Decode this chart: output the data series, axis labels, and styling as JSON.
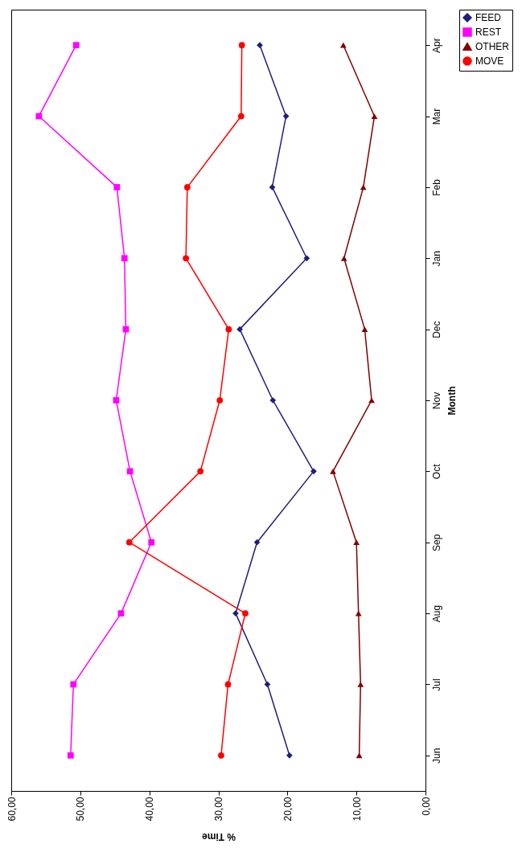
{
  "chart_data": {
    "type": "line",
    "orientation": "horizontal",
    "xlabel": "% Time",
    "ylabel": "Month",
    "categories": [
      "Apr",
      "Mar",
      "Feb",
      "Jan",
      "Dec",
      "Nov",
      "Oct",
      "Sep",
      "Aug",
      "Jul",
      "Jun"
    ],
    "series": [
      {
        "name": "FEED",
        "color": "#1f1f7a",
        "marker": "diamond",
        "values": [
          24.0,
          20.2,
          22.2,
          17.2,
          26.9,
          22.1,
          16.2,
          24.4,
          27.5,
          22.9,
          19.7
        ]
      },
      {
        "name": "REST",
        "color": "#ff00ff",
        "marker": "square",
        "values": [
          50.6,
          56.0,
          44.7,
          43.6,
          43.4,
          44.8,
          42.8,
          39.7,
          44.1,
          51.0,
          51.4
        ]
      },
      {
        "name": "OTHER",
        "color": "#800000",
        "marker": "triangle",
        "values": [
          11.9,
          7.4,
          9.0,
          11.8,
          8.8,
          7.8,
          13.4,
          10.0,
          9.7,
          9.4,
          9.6
        ]
      },
      {
        "name": "MOVE",
        "color": "#ff0000",
        "marker": "circle",
        "values": [
          26.6,
          26.7,
          34.5,
          34.7,
          28.5,
          29.8,
          32.6,
          42.9,
          26.1,
          28.6,
          29.6
        ]
      }
    ],
    "xlim": [
      60,
      0
    ],
    "xticks": [
      {
        "value": 60,
        "label": "60,00"
      },
      {
        "value": 50,
        "label": "50,00"
      },
      {
        "value": 40,
        "label": "40,00"
      },
      {
        "value": 30,
        "label": "30,00"
      },
      {
        "value": 20,
        "label": "20,00"
      },
      {
        "value": 10,
        "label": "10,00"
      },
      {
        "value": 0,
        "label": "0,00"
      }
    ],
    "grid": false,
    "legend": "right"
  }
}
